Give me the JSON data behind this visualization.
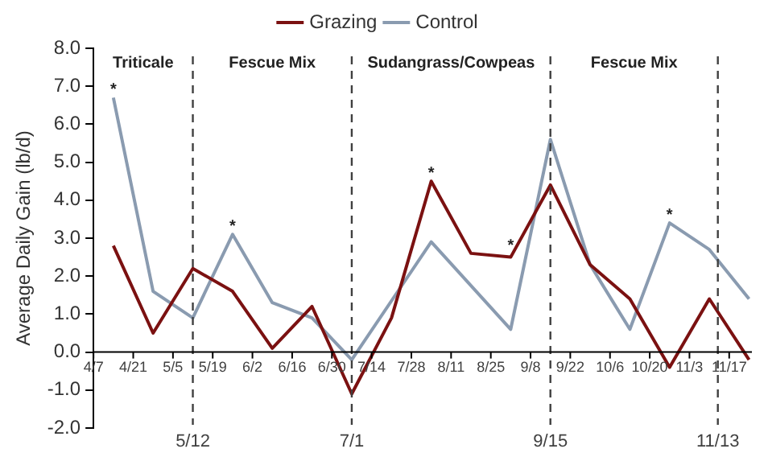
{
  "chart_data": {
    "type": "line",
    "ylabel": "Average Daily Gain (lb/d)",
    "legend": "top",
    "line_style": "solid",
    "marker": "none",
    "grid": false,
    "xlim": [
      "--04-07",
      "--11-25"
    ],
    "xticks": [
      {
        "value": "--04-07",
        "label": "4/7"
      },
      {
        "value": "--04-21",
        "label": "4/21"
      },
      {
        "value": "--05-05",
        "label": "5/5"
      },
      {
        "value": "--05-19",
        "label": "5/19"
      },
      {
        "value": "--06-02",
        "label": "6/2"
      },
      {
        "value": "--06-16",
        "label": "6/16"
      },
      {
        "value": "--06-30",
        "label": "6/30"
      },
      {
        "value": "--07-14",
        "label": "7/14"
      },
      {
        "value": "--07-28",
        "label": "7/28"
      },
      {
        "value": "--08-11",
        "label": "8/11"
      },
      {
        "value": "--08-25",
        "label": "8/25"
      },
      {
        "value": "--09-08",
        "label": "9/8"
      },
      {
        "value": "--09-22",
        "label": "9/22"
      },
      {
        "value": "--10-06",
        "label": "10/6"
      },
      {
        "value": "--10-20",
        "label": "10/20"
      },
      {
        "value": "--11-03",
        "label": "11/3"
      },
      {
        "value": "--11-17",
        "label": "11/17"
      }
    ],
    "ylim": [
      -2,
      8
    ],
    "yticks": [
      {
        "value": -2,
        "label": "-2.0"
      },
      {
        "value": -1,
        "label": "-1.0"
      },
      {
        "value": 0,
        "label": "0.0"
      },
      {
        "value": 1,
        "label": "1.0"
      },
      {
        "value": 2,
        "label": "2.0"
      },
      {
        "value": 3,
        "label": "3.0"
      },
      {
        "value": 4,
        "label": "4.0"
      },
      {
        "value": 5,
        "label": "5.0"
      },
      {
        "value": 6,
        "label": "6.0"
      },
      {
        "value": 7,
        "label": "7.0"
      },
      {
        "value": 8,
        "label": "8.0"
      }
    ],
    "series": [
      {
        "name": "Grazing",
        "color": "#7b1111",
        "x": [
          "--04-14",
          "--04-28",
          "--05-12",
          "--05-26",
          "--06-09",
          "--06-23",
          "--07-07",
          "--07-21",
          "--08-04",
          "--08-18",
          "--09-01",
          "--09-15",
          "--09-29",
          "--10-13",
          "--10-27",
          "--11-10",
          "--11-24"
        ],
        "values": [
          2.8,
          0.5,
          2.2,
          1.6,
          0.1,
          1.2,
          -1.1,
          0.9,
          4.5,
          2.6,
          2.5,
          4.4,
          2.3,
          1.4,
          -0.4,
          1.4,
          -0.2
        ]
      },
      {
        "name": "Control",
        "color": "#8a9bb0",
        "x": [
          "--04-14",
          "--04-28",
          "--05-12",
          "--05-26",
          "--06-09",
          "--06-23",
          "--07-07",
          "--08-04",
          "--09-01",
          "--09-15",
          "--09-29",
          "--10-13",
          "--10-27",
          "--11-10",
          "--11-24"
        ],
        "values": [
          6.7,
          1.6,
          0.9,
          3.1,
          1.3,
          0.9,
          -0.2,
          2.9,
          0.6,
          5.6,
          2.3,
          0.6,
          3.4,
          2.7,
          1.4
        ]
      }
    ],
    "ref_lines": [
      {
        "axis": "x",
        "value": "--05-12",
        "label": "5/12",
        "color": "#404040",
        "line_style": "dashed"
      },
      {
        "axis": "x",
        "value": "--07-07",
        "label": "7/1",
        "color": "#404040",
        "line_style": "dashed"
      },
      {
        "axis": "x",
        "value": "--09-15",
        "label": "9/15",
        "color": "#404040",
        "line_style": "dashed"
      },
      {
        "axis": "x",
        "value": "--11-13",
        "label": "11/13",
        "color": "#404040",
        "line_style": "dashed"
      }
    ],
    "annotations": [
      "Triticale",
      "Fescue Mix",
      "Sudangrass/Cowpeas",
      "Fescue Mix",
      {
        "text": "*",
        "x": "--04-14",
        "y": 6.9
      },
      {
        "text": "*",
        "x": "--05-26",
        "y": 3.3
      },
      {
        "text": "*",
        "x": "--08-04",
        "y": 4.7
      },
      {
        "text": "*",
        "x": "--09-01",
        "y": 2.8
      },
      {
        "text": "*",
        "x": "--10-27",
        "y": 3.6
      }
    ]
  }
}
